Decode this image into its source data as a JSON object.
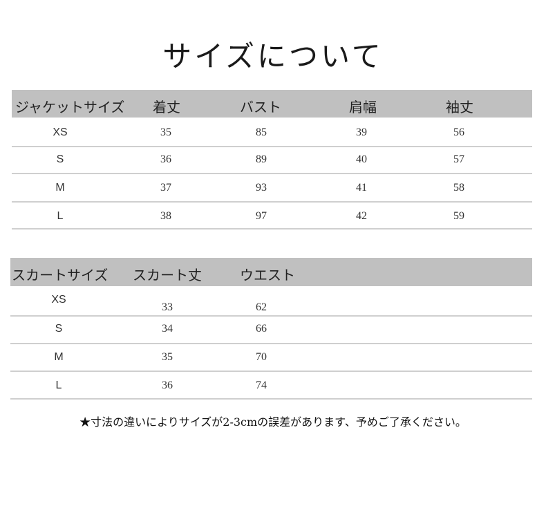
{
  "title": "サイズについて",
  "jacket_table": {
    "headers": [
      "ジャケットサイズ",
      "着丈",
      "バスト",
      "肩幅",
      "袖丈"
    ],
    "rows": [
      [
        "XS",
        "35",
        "85",
        "39",
        "56"
      ],
      [
        "S",
        "36",
        "89",
        "40",
        "57"
      ],
      [
        "M",
        "37",
        "93",
        "41",
        "58"
      ],
      [
        "L",
        "38",
        "97",
        "42",
        "59"
      ]
    ]
  },
  "skirt_table": {
    "headers": [
      "スカートサイズ",
      "スカート丈",
      "ウエスト"
    ],
    "rows": [
      [
        "XS",
        "33",
        "62"
      ],
      [
        "S",
        "34",
        "66"
      ],
      [
        "M",
        "35",
        "70"
      ],
      [
        "L",
        "36",
        "74"
      ]
    ]
  },
  "note": "★寸法の違いによりサイズが2-3cmの誤差があります、予めご了承ください。",
  "colors": {
    "header_band": "#c0c0c0",
    "row_rule": "#cfcfcf"
  }
}
